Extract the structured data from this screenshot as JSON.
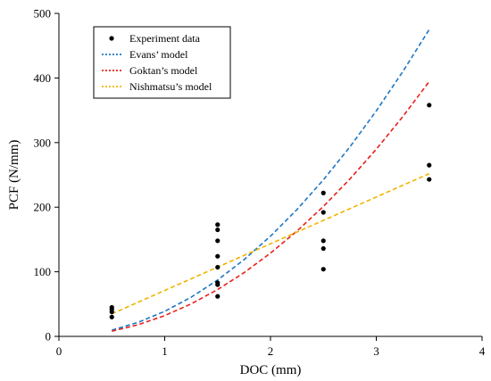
{
  "chart_data": {
    "type": "scatter",
    "xlabel": "DOC (mm)",
    "ylabel": "PCF (N/mm)",
    "xlim": [
      0,
      4
    ],
    "ylim": [
      0,
      500
    ],
    "xticks": [
      0,
      1,
      2,
      3,
      4
    ],
    "yticks": [
      0,
      100,
      200,
      300,
      400,
      500
    ],
    "grid": false,
    "legend_position": "top-left",
    "scatter": {
      "name": "Experiment data",
      "color": "#000000",
      "points": [
        {
          "x": 0.5,
          "y": 45
        },
        {
          "x": 0.5,
          "y": 42
        },
        {
          "x": 0.5,
          "y": 38
        },
        {
          "x": 0.5,
          "y": 30
        },
        {
          "x": 1.5,
          "y": 173
        },
        {
          "x": 1.5,
          "y": 165
        },
        {
          "x": 1.5,
          "y": 148
        },
        {
          "x": 1.5,
          "y": 124
        },
        {
          "x": 1.5,
          "y": 107
        },
        {
          "x": 1.5,
          "y": 83
        },
        {
          "x": 1.5,
          "y": 80
        },
        {
          "x": 1.5,
          "y": 62
        },
        {
          "x": 2.5,
          "y": 222
        },
        {
          "x": 2.5,
          "y": 192
        },
        {
          "x": 2.5,
          "y": 148
        },
        {
          "x": 2.5,
          "y": 136
        },
        {
          "x": 2.5,
          "y": 104
        },
        {
          "x": 3.5,
          "y": 358
        },
        {
          "x": 3.5,
          "y": 265
        },
        {
          "x": 3.5,
          "y": 243
        }
      ]
    },
    "series": [
      {
        "name": "Evans’ model",
        "color": "#1f77c4",
        "x": [
          0.5,
          0.75,
          1.0,
          1.25,
          1.5,
          1.75,
          2.0,
          2.25,
          2.5,
          2.75,
          3.0,
          3.25,
          3.5
        ],
        "values": [
          9.7,
          21.8,
          38.8,
          60.6,
          87.3,
          118.8,
          155.1,
          196.3,
          242.4,
          293.3,
          349.0,
          409.6,
          475.0
        ]
      },
      {
        "name": "Goktan’s model",
        "color": "#e8201c",
        "x": [
          0.5,
          0.75,
          1.0,
          1.25,
          1.5,
          1.75,
          2.0,
          2.25,
          2.5,
          2.75,
          3.0,
          3.25,
          3.5
        ],
        "values": [
          8.0,
          18.1,
          32.2,
          50.3,
          72.5,
          98.6,
          128.8,
          163.0,
          201.2,
          243.5,
          289.8,
          340.1,
          394.5
        ]
      },
      {
        "name": "Nishmatsu’s model",
        "color": "#f0b400",
        "x": [
          0.5,
          3.5
        ],
        "values": [
          35,
          252
        ]
      }
    ],
    "legend": [
      "Experiment data",
      "Evans’ model",
      "Goktan’s model",
      "Nishmatsu’s model"
    ]
  }
}
